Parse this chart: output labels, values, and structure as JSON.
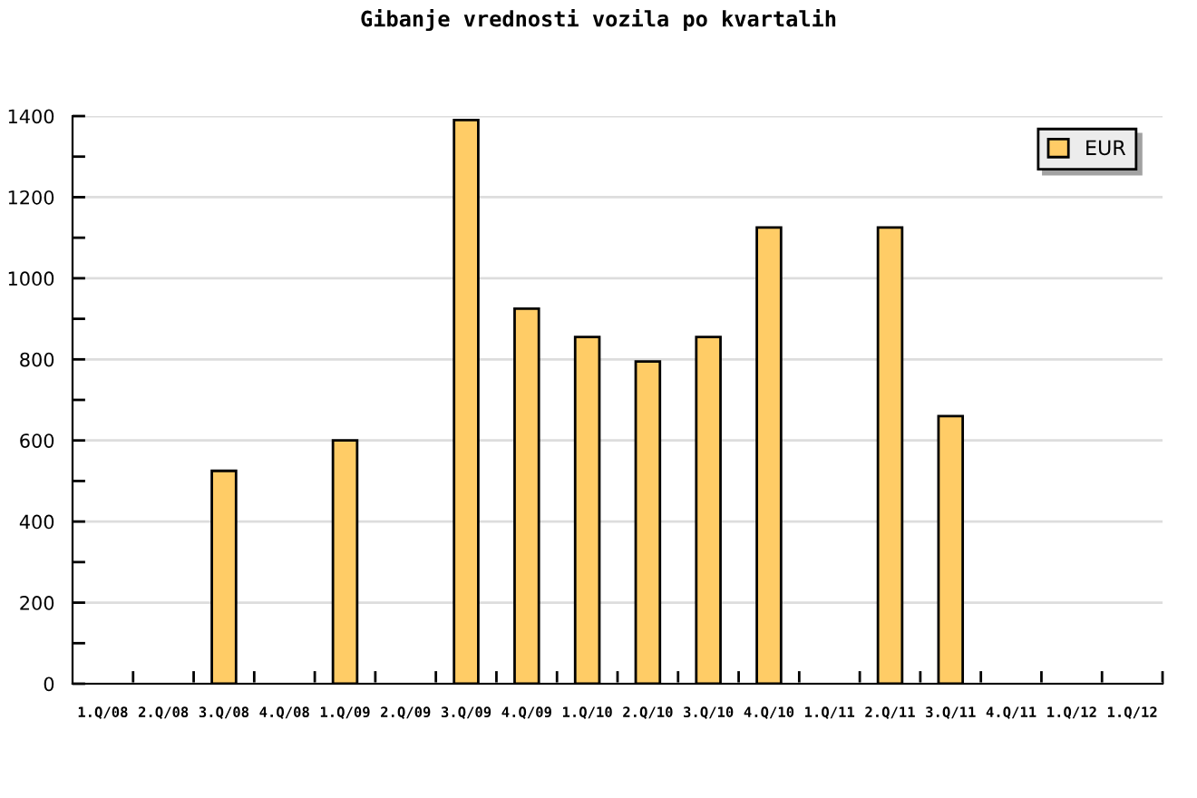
{
  "chart_data": {
    "type": "bar",
    "title": "Gibanje vrednosti vozila po kvartalih",
    "categories": [
      "1.Q/08",
      "2.Q/08",
      "3.Q/08",
      "4.Q/08",
      "1.Q/09",
      "2.Q/09",
      "3.Q/09",
      "4.Q/09",
      "1.Q/10",
      "2.Q/10",
      "3.Q/10",
      "4.Q/10",
      "1.Q/11",
      "2.Q/11",
      "3.Q/11",
      "4.Q/11",
      "1.Q/12",
      "1.Q/12"
    ],
    "series": [
      {
        "name": "EUR",
        "color": "#ffcc66",
        "values": [
          null,
          null,
          525,
          null,
          600,
          null,
          1390,
          925,
          855,
          795,
          855,
          1125,
          null,
          1125,
          660,
          null,
          null,
          null
        ]
      }
    ],
    "ylim": [
      0,
      1400
    ],
    "yticks": [
      0,
      {
        "value": 100,
        "label": null
      },
      200,
      {
        "value": 300,
        "label": null
      },
      400,
      {
        "value": 500,
        "label": null
      },
      600,
      {
        "value": 700,
        "label": null
      },
      800,
      {
        "value": 900,
        "label": null
      },
      1000,
      {
        "value": 1100,
        "label": null
      },
      1200,
      {
        "value": 1300,
        "label": null
      },
      1400
    ],
    "grid": "y",
    "legend": "top right"
  }
}
